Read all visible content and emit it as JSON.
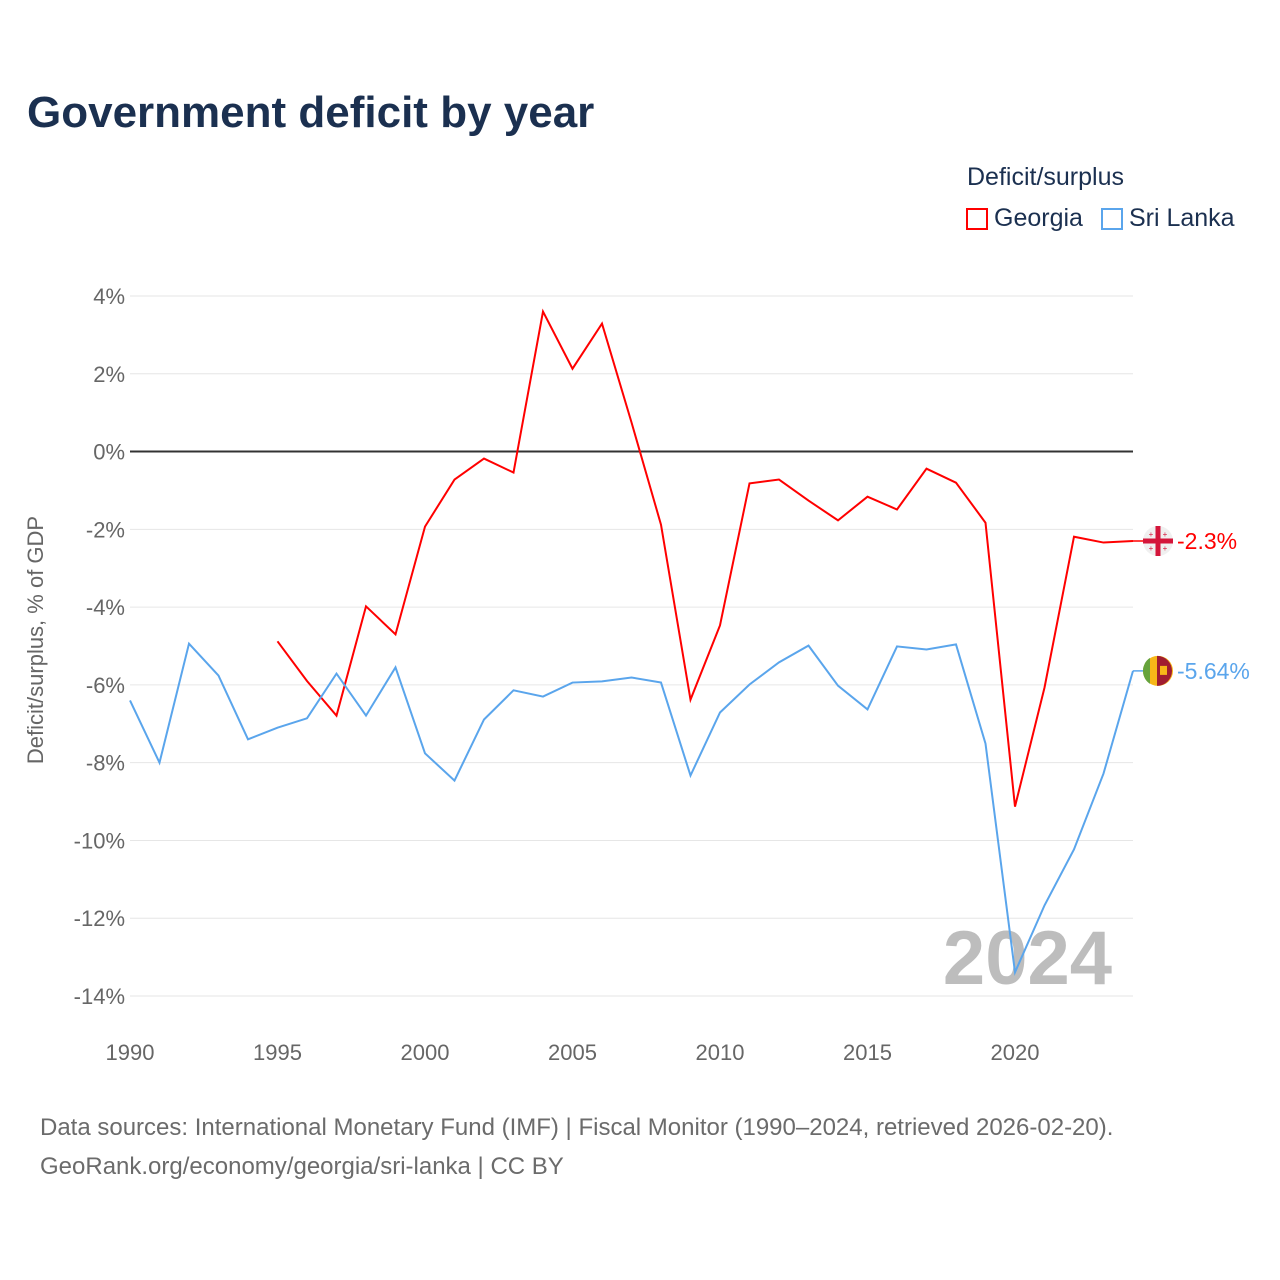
{
  "title": "Government deficit by year",
  "legend": {
    "title": "Deficit/surplus",
    "items": [
      "Georgia",
      "Sri Lanka"
    ]
  },
  "footer": {
    "line1": "Data sources: International Monetary Fund (IMF) | Fiscal Monitor (1990–2024, retrieved 2026-02-20).",
    "line2": "GeoRank.org/economy/georgia/sri-lanka | CC BY"
  },
  "chart_data": {
    "type": "line",
    "title": "Government deficit by year",
    "xlabel": "",
    "ylabel": "Deficit/surplus, % of GDP",
    "xlim": [
      1990,
      2024
    ],
    "ylim": [
      -14,
      4
    ],
    "yticks": [
      4,
      2,
      0,
      -2,
      -4,
      -6,
      -8,
      -10,
      -12,
      -14
    ],
    "ytick_labels": [
      "4%",
      "2%",
      "0%",
      "-2%",
      "-4%",
      "-6%",
      "-8%",
      "-10%",
      "-12%",
      "-14%"
    ],
    "xticks": [
      1990,
      1995,
      2000,
      2005,
      2010,
      2015,
      2020
    ],
    "xtick_labels": [
      "1990",
      "1995",
      "2000",
      "2005",
      "2010",
      "2015",
      "2020"
    ],
    "watermark_year": "2024",
    "grid": true,
    "legend_position": "top-right",
    "series": [
      {
        "name": "Georgia",
        "color": "#ff0000",
        "end_label": "-2.3%",
        "x": [
          1995,
          1996,
          1997,
          1998,
          1999,
          2000,
          2001,
          2002,
          2003,
          2004,
          2005,
          2006,
          2007,
          2008,
          2009,
          2010,
          2011,
          2012,
          2013,
          2014,
          2015,
          2016,
          2017,
          2018,
          2019,
          2020,
          2021,
          2022,
          2023,
          2024
        ],
        "values": [
          -4.88,
          -5.9,
          -6.79,
          -3.98,
          -4.7,
          -1.93,
          -0.72,
          -0.18,
          -0.54,
          3.6,
          2.13,
          3.29,
          0.75,
          -1.88,
          -6.38,
          -4.47,
          -0.82,
          -0.72,
          -1.26,
          -1.77,
          -1.16,
          -1.49,
          -0.44,
          -0.8,
          -1.83,
          -9.13,
          -6.07,
          -2.19,
          -2.34,
          -2.3
        ]
      },
      {
        "name": "Sri Lanka",
        "color": "#5aa5ec",
        "end_label": "-5.64%",
        "x": [
          1990,
          1991,
          1992,
          1993,
          1994,
          1995,
          1996,
          1997,
          1998,
          1999,
          2000,
          2001,
          2002,
          2003,
          2004,
          2005,
          2006,
          2007,
          2008,
          2009,
          2010,
          2011,
          2012,
          2013,
          2014,
          2015,
          2016,
          2017,
          2018,
          2019,
          2020,
          2021,
          2022,
          2023,
          2024
        ],
        "values": [
          -6.4,
          -8.0,
          -4.94,
          -5.76,
          -7.4,
          -7.1,
          -6.86,
          -5.71,
          -6.79,
          -5.55,
          -7.76,
          -8.46,
          -6.89,
          -6.14,
          -6.3,
          -5.94,
          -5.91,
          -5.81,
          -5.94,
          -8.33,
          -6.71,
          -5.99,
          -5.42,
          -4.99,
          -6.02,
          -6.63,
          -5.01,
          -5.09,
          -4.96,
          -7.51,
          -13.39,
          -11.67,
          -10.23,
          -8.28,
          -5.64
        ]
      }
    ]
  }
}
